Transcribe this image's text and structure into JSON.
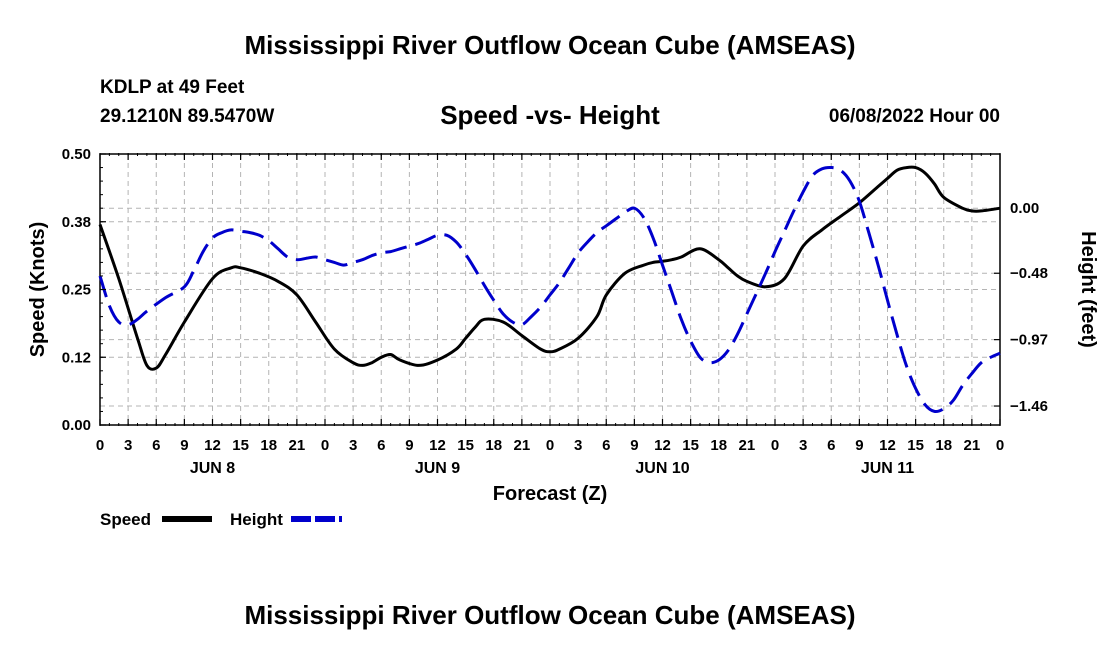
{
  "title": "Mississippi River Outflow Ocean Cube (AMSEAS)",
  "title_repeat": "Mississippi River Outflow Ocean Cube (AMSEAS)",
  "station": "KDLP at 49 Feet",
  "coordinates": "29.1210N  89.5470W",
  "subtitle": "Speed -vs- Height",
  "datetime": "06/08/2022 Hour 00",
  "chart_data": {
    "type": "line",
    "xlabel": "Forecast (Z)",
    "ylabel_left": "Speed (Knots)",
    "ylabel_right": "Height (feet)",
    "x_range": [
      0,
      96
    ],
    "y_left_range": [
      0,
      0.5
    ],
    "y_left_ticks": [
      "0.00",
      "0.12",
      "0.25",
      "0.38",
      "0.50"
    ],
    "y_left_tick_values": [
      0,
      0.125,
      0.25,
      0.375,
      0.5
    ],
    "y_right_range": [
      -1.6,
      0.4
    ],
    "y_right_ticks": [
      "0.00",
      "−0.48",
      "−0.97",
      "−1.46"
    ],
    "y_right_tick_values": [
      0,
      -0.48,
      -0.97,
      -1.46
    ],
    "x_tick_labels": [
      "0",
      "3",
      "6",
      "9",
      "12",
      "15",
      "18",
      "21",
      "0",
      "3",
      "6",
      "9",
      "12",
      "15",
      "18",
      "21",
      "0",
      "3",
      "6",
      "9",
      "12",
      "15",
      "18",
      "21",
      "0",
      "3",
      "6",
      "9",
      "12",
      "15",
      "18",
      "21",
      "0"
    ],
    "day_labels": [
      {
        "label": "JUN 8",
        "hour": 12
      },
      {
        "label": "JUN 9",
        "hour": 36
      },
      {
        "label": "JUN 10",
        "hour": 60
      },
      {
        "label": "JUN 11",
        "hour": 84
      }
    ],
    "grid": true,
    "series": [
      {
        "name": "Speed",
        "axis": "left",
        "color": "#000000",
        "dash": "solid",
        "x": [
          0,
          2,
          4,
          5,
          6,
          7,
          9,
          12,
          14,
          15,
          17,
          19,
          21,
          23,
          25,
          27,
          28,
          29,
          30,
          31,
          32,
          34,
          36,
          38,
          39,
          40,
          41,
          43,
          45,
          47,
          48,
          49,
          51,
          53,
          54,
          56,
          58,
          59,
          60,
          61,
          62,
          64,
          66,
          67,
          68,
          69,
          71,
          73,
          75,
          77,
          79,
          81,
          83,
          84,
          85,
          86,
          87,
          88,
          89,
          90,
          92,
          93,
          94,
          96
        ],
        "values": [
          0.37,
          0.27,
          0.16,
          0.11,
          0.105,
          0.13,
          0.19,
          0.27,
          0.29,
          0.29,
          0.28,
          0.265,
          0.24,
          0.19,
          0.14,
          0.115,
          0.11,
          0.115,
          0.125,
          0.13,
          0.12,
          0.11,
          0.12,
          0.14,
          0.16,
          0.18,
          0.195,
          0.19,
          0.165,
          0.14,
          0.135,
          0.14,
          0.16,
          0.2,
          0.24,
          0.28,
          0.295,
          0.3,
          0.302,
          0.305,
          0.31,
          0.325,
          0.305,
          0.29,
          0.275,
          0.265,
          0.255,
          0.27,
          0.33,
          0.36,
          0.385,
          0.41,
          0.44,
          0.455,
          0.47,
          0.475,
          0.475,
          0.465,
          0.445,
          0.42,
          0.4,
          0.395,
          0.395,
          0.4
        ]
      },
      {
        "name": "Height",
        "axis": "right",
        "color": "#0000cc",
        "dash": "dashed",
        "x": [
          0,
          1,
          2,
          3,
          4,
          5,
          7,
          9,
          10,
          11,
          12,
          13,
          14,
          15,
          16,
          17,
          18,
          19,
          20,
          21,
          22,
          23,
          24,
          25,
          26,
          27,
          28,
          29,
          30,
          31,
          32,
          33,
          34,
          35,
          36,
          37,
          38,
          39,
          40,
          41,
          42,
          43,
          44,
          45,
          46,
          47,
          48,
          49,
          50,
          51,
          52,
          53,
          54,
          55,
          56,
          57,
          58,
          59,
          60,
          61,
          62,
          63,
          64,
          65,
          66,
          67,
          68,
          69,
          70,
          71,
          72,
          73,
          74,
          75,
          76,
          77,
          78,
          79,
          80,
          81,
          82,
          83,
          84,
          85,
          86,
          87,
          88,
          89,
          90,
          91,
          92,
          93,
          94,
          95,
          96
        ],
        "values": [
          -0.5,
          -0.72,
          -0.84,
          -0.86,
          -0.82,
          -0.76,
          -0.66,
          -0.58,
          -0.46,
          -0.32,
          -0.22,
          -0.18,
          -0.16,
          -0.17,
          -0.18,
          -0.2,
          -0.24,
          -0.3,
          -0.36,
          -0.38,
          -0.37,
          -0.36,
          -0.38,
          -0.4,
          -0.42,
          -0.4,
          -0.38,
          -0.35,
          -0.33,
          -0.32,
          -0.3,
          -0.28,
          -0.26,
          -0.23,
          -0.2,
          -0.2,
          -0.25,
          -0.34,
          -0.45,
          -0.57,
          -0.68,
          -0.78,
          -0.84,
          -0.86,
          -0.8,
          -0.73,
          -0.64,
          -0.55,
          -0.44,
          -0.33,
          -0.25,
          -0.18,
          -0.13,
          -0.08,
          -0.03,
          0.0,
          -0.07,
          -0.22,
          -0.42,
          -0.62,
          -0.82,
          -0.98,
          -1.1,
          -1.14,
          -1.12,
          -1.05,
          -0.93,
          -0.78,
          -0.63,
          -0.48,
          -0.32,
          -0.17,
          -0.02,
          0.12,
          0.24,
          0.29,
          0.3,
          0.28,
          0.2,
          0.05,
          -0.18,
          -0.42,
          -0.68,
          -0.93,
          -1.16,
          -1.33,
          -1.45,
          -1.5,
          -1.48,
          -1.42,
          -1.31,
          -1.22,
          -1.14,
          -1.1,
          -1.07
        ]
      }
    ],
    "legend": {
      "position": "bottom-left",
      "entries": [
        {
          "label": "Speed",
          "color": "#000000",
          "dash": "solid"
        },
        {
          "label": "Height",
          "color": "#0000cc",
          "dash": "dashed"
        }
      ]
    }
  }
}
